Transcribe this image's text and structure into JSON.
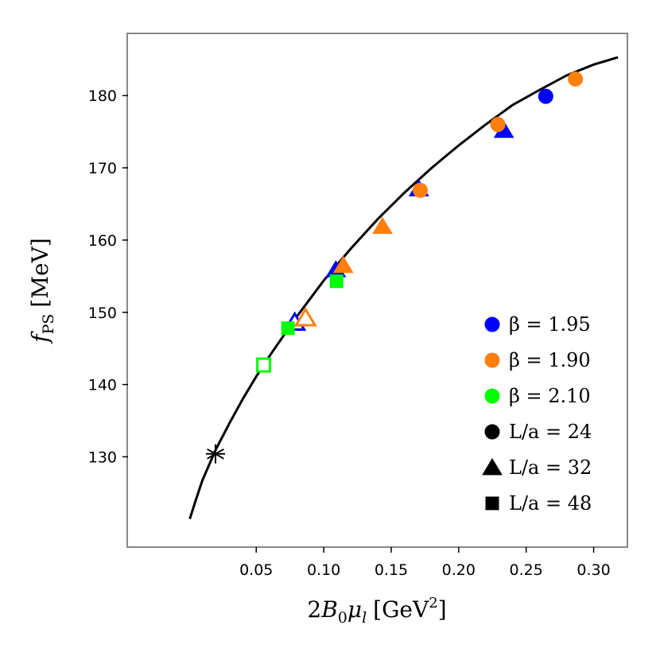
{
  "chart_data": {
    "type": "scatter",
    "title": "",
    "xlabel": "2B_0 μ_l [GeV^2]",
    "xlabel_parts": {
      "pre": "2",
      "B": "B",
      "sub0": "0",
      "mu": "μ",
      "subl": "l",
      "unit_open": "[GeV",
      "sup": "2",
      "unit_close": "]"
    },
    "ylabel": "f_PS [MeV]",
    "ylabel_parts": {
      "f": "f",
      "sub": "PS",
      "unit": "[MeV]"
    },
    "xlim": [
      -0.045,
      0.325
    ],
    "ylim": [
      117.5,
      188.5
    ],
    "x_ticks": [
      0.05,
      0.1,
      0.15,
      0.2,
      0.25,
      0.3
    ],
    "x_tick_labels": [
      "0.05",
      "0.10",
      "0.15",
      "0.20",
      "0.25",
      "0.30"
    ],
    "y_ticks": [
      130,
      140,
      150,
      160,
      170,
      180
    ],
    "y_tick_labels": [
      "130",
      "140",
      "150",
      "160",
      "170",
      "180"
    ],
    "grid": false,
    "legend_position": "lower-right",
    "colors": {
      "beta195": "#0000ff",
      "beta190": "#ff7f0e",
      "beta210": "#00ff00",
      "curve": "#000000",
      "frame": "#888888"
    },
    "legend": [
      {
        "label": "β = 1.95",
        "marker": "circle",
        "color": "#0000ff"
      },
      {
        "label": "β = 1.90",
        "marker": "circle",
        "color": "#ff7f0e"
      },
      {
        "label": "β = 2.10",
        "marker": "circle",
        "color": "#00ff00"
      },
      {
        "label": "L/a = 24",
        "marker": "circle",
        "color": "#000000"
      },
      {
        "label": "L/a = 32",
        "marker": "triangle",
        "color": "#000000"
      },
      {
        "label": "L/a = 48",
        "marker": "square",
        "color": "#000000"
      }
    ],
    "fit_curve": {
      "name": "chiral fit",
      "x": [
        0.0008,
        0.005,
        0.01,
        0.02,
        0.03,
        0.04,
        0.05,
        0.06,
        0.08,
        0.1,
        0.12,
        0.14,
        0.16,
        0.18,
        0.2,
        0.22,
        0.24,
        0.26,
        0.28,
        0.3,
        0.318
      ],
      "y": [
        121.4,
        123.9,
        126.7,
        131.0,
        134.6,
        138.0,
        141.1,
        144.0,
        149.4,
        154.4,
        158.8,
        162.9,
        166.6,
        170.0,
        173.1,
        176.0,
        178.7,
        180.8,
        182.8,
        184.3,
        185.3
      ]
    },
    "physical_point": {
      "x": 0.0198,
      "y": 130.4,
      "marker": "asterisk",
      "color": "#000000"
    },
    "series": [
      {
        "name": "β = 1.95",
        "color": "#0000ff",
        "points": [
          {
            "x": 0.0785,
            "y": 148.6,
            "marker": "triangle",
            "filled": false
          },
          {
            "x": 0.109,
            "y": 155.9,
            "marker": "triangle",
            "filled": true
          },
          {
            "x": 0.1705,
            "y": 167.1,
            "marker": "triangle",
            "filled": true
          },
          {
            "x": 0.2335,
            "y": 175.2,
            "marker": "triangle",
            "filled": true
          },
          {
            "x": 0.2645,
            "y": 179.9,
            "marker": "circle",
            "filled": true
          }
        ]
      },
      {
        "name": "β = 1.90",
        "color": "#ff7f0e",
        "points": [
          {
            "x": 0.0865,
            "y": 149.2,
            "marker": "triangle",
            "filled": false
          },
          {
            "x": 0.1145,
            "y": 156.5,
            "marker": "triangle",
            "filled": true
          },
          {
            "x": 0.1435,
            "y": 161.9,
            "marker": "triangle",
            "filled": true
          },
          {
            "x": 0.1715,
            "y": 166.9,
            "marker": "circle",
            "filled": true
          },
          {
            "x": 0.229,
            "y": 176.0,
            "marker": "circle",
            "filled": true
          },
          {
            "x": 0.2865,
            "y": 182.3,
            "marker": "circle",
            "filled": true
          }
        ]
      },
      {
        "name": "β = 2.10",
        "color": "#00ff00",
        "points": [
          {
            "x": 0.0555,
            "y": 142.7,
            "marker": "square",
            "filled": false
          },
          {
            "x": 0.0735,
            "y": 147.8,
            "marker": "square",
            "filled": true
          },
          {
            "x": 0.1095,
            "y": 154.3,
            "marker": "square",
            "filled": true
          }
        ]
      }
    ]
  }
}
